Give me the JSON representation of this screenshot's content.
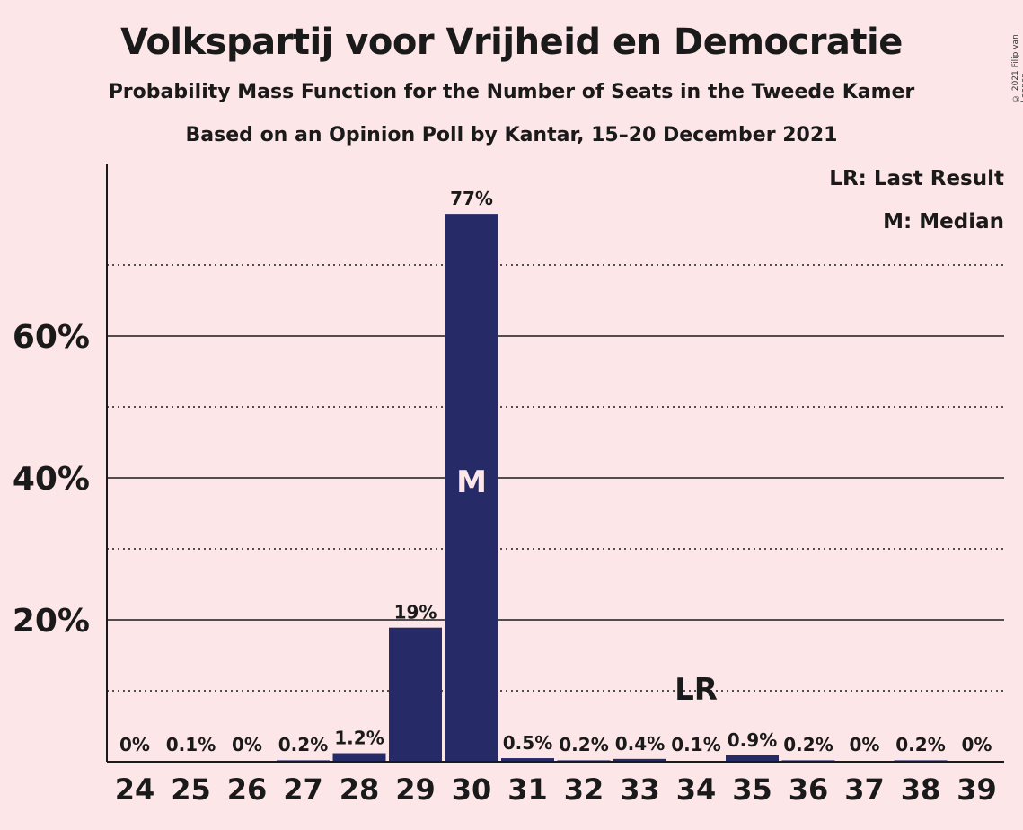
{
  "title": "Volkspartij voor Vrijheid en Democratie",
  "subtitle": "Probability Mass Function for the Number of Seats in the Tweede Kamer",
  "source": "Based on an Opinion Poll by Kantar, 15–20 December 2021",
  "legend": {
    "last_result": "LR: Last Result",
    "median": "M: Median"
  },
  "copyright": "© 2021 Filip van Laenen",
  "colors": {
    "background": "#fde6e8",
    "bar": "#262a66",
    "text": "#1a1a1a",
    "median_label": "#fde6e8"
  },
  "chart_data": {
    "type": "bar",
    "categories": [
      "24",
      "25",
      "26",
      "27",
      "28",
      "29",
      "30",
      "31",
      "32",
      "33",
      "34",
      "35",
      "36",
      "37",
      "38",
      "39"
    ],
    "values": [
      0,
      0.1,
      0,
      0.2,
      1.2,
      18.9,
      77.2,
      0.5,
      0.2,
      0.4,
      0.1,
      0.9,
      0.2,
      0,
      0.2,
      0
    ],
    "data_labels": [
      "0%",
      "0.1%",
      "0%",
      "0.2%",
      "1.2%",
      "19%",
      "77%",
      "0.5%",
      "0.2%",
      "0.4%",
      "0.1%",
      "0.9%",
      "0.2%",
      "0%",
      "0.2%",
      "0%"
    ],
    "ylim": [
      0,
      84
    ],
    "y_ticks": [
      20,
      40,
      60
    ],
    "y_tick_labels": [
      "20%",
      "40%",
      "60%"
    ],
    "y_minor_gridlines": [
      10,
      30,
      50,
      70
    ],
    "median_category": "30",
    "median_marker": "M",
    "last_result_category": "34",
    "last_result_marker": "LR",
    "grid": true
  }
}
